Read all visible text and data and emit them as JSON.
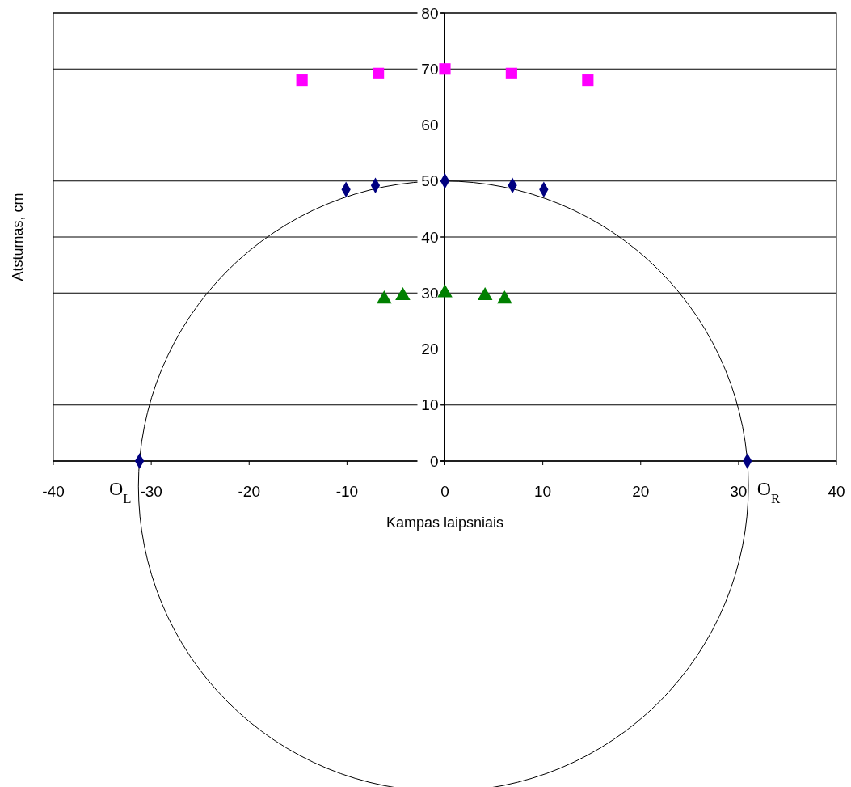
{
  "chart_data": {
    "type": "scatter",
    "xlabel": "Kampas laipsniais",
    "ylabel": "Atstumas, cm",
    "xlim": [
      -40,
      40
    ],
    "xticks": [
      -40,
      -30,
      -20,
      -10,
      0,
      10,
      20,
      30,
      40
    ],
    "ylim": [
      0,
      80
    ],
    "yticks": [
      0,
      10,
      20,
      30,
      40,
      50,
      60,
      70,
      80
    ],
    "grid": "y",
    "series": [
      {
        "color": "#ff00ff",
        "marker": "square",
        "x": [
          -14.6,
          -6.8,
          0,
          6.8,
          14.6
        ],
        "values": [
          68,
          69.2,
          70,
          69.2,
          68
        ]
      },
      {
        "color": "#000080",
        "marker": "diamond",
        "x": [
          -31.2,
          -10.1,
          -7.1,
          0,
          6.9,
          10.1,
          30.9
        ],
        "values": [
          0,
          48.5,
          49.2,
          50,
          49.2,
          48.5,
          0
        ]
      },
      {
        "color": "#008000",
        "marker": "triangle",
        "x": [
          -6.2,
          -4.3,
          0,
          4.1,
          6.1
        ],
        "values": [
          28.9,
          29.5,
          30,
          29.5,
          28.9
        ]
      }
    ],
    "annotations": [
      {
        "text": "O$_{L}$",
        "x": -31.2,
        "y": 0
      },
      {
        "text": "O$_{R}$",
        "x": 30.9,
        "y": 0
      }
    ]
  }
}
